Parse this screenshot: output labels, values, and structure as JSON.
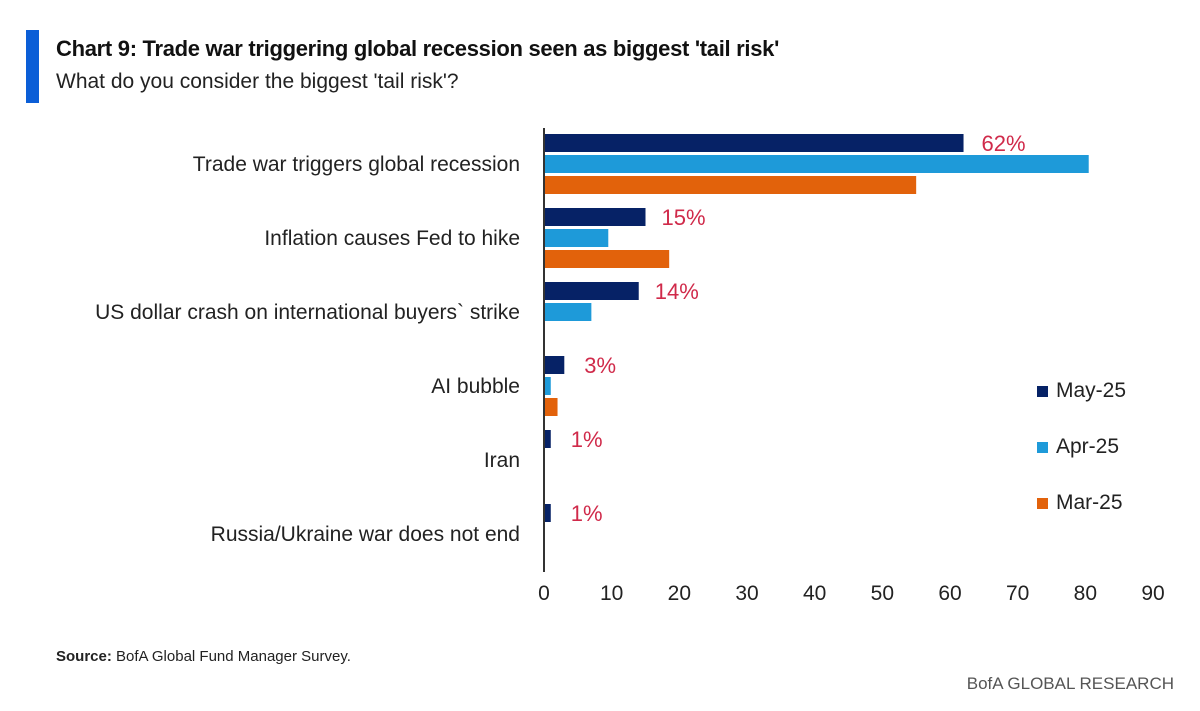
{
  "header": {
    "title": "Chart 9: Trade war triggering global recession seen as biggest 'tail risk'",
    "subtitle": "What do you consider the biggest 'tail risk'?"
  },
  "footer": {
    "source_label": "Source:",
    "source_text": " BofA Global Fund Manager Survey.",
    "brand": "BofA GLOBAL RESEARCH"
  },
  "chart_data": {
    "type": "bar",
    "orientation": "horizontal",
    "title": "Chart 9: Trade war triggering global recession seen as biggest 'tail risk'",
    "subtitle": "What do you consider the biggest 'tail risk'?",
    "xlabel": "",
    "ylabel": "",
    "xlim": [
      0,
      90
    ],
    "xticks": [
      0,
      10,
      20,
      30,
      40,
      50,
      60,
      70,
      80,
      90
    ],
    "grid": false,
    "legend_position": "right",
    "categories": [
      "Trade war triggers global recession",
      "Inflation causes Fed to hike",
      "US dollar crash on international buyers` strike",
      "AI bubble",
      "Iran",
      "Russia/Ukraine war does not end"
    ],
    "series": [
      {
        "name": "May-25",
        "color": "#062266",
        "values": [
          62,
          15,
          14,
          3,
          1,
          1
        ]
      },
      {
        "name": "Apr-25",
        "color": "#1e9ad9",
        "values": [
          80.5,
          9.5,
          7,
          1,
          0,
          0
        ]
      },
      {
        "name": "Mar-25",
        "color": "#e2620b",
        "values": [
          55,
          18.5,
          0,
          2,
          0,
          0
        ]
      }
    ],
    "data_labels": [
      "62%",
      "15%",
      "14%",
      "3%",
      "1%",
      "1%"
    ],
    "data_label_color": "#d02a4a"
  }
}
